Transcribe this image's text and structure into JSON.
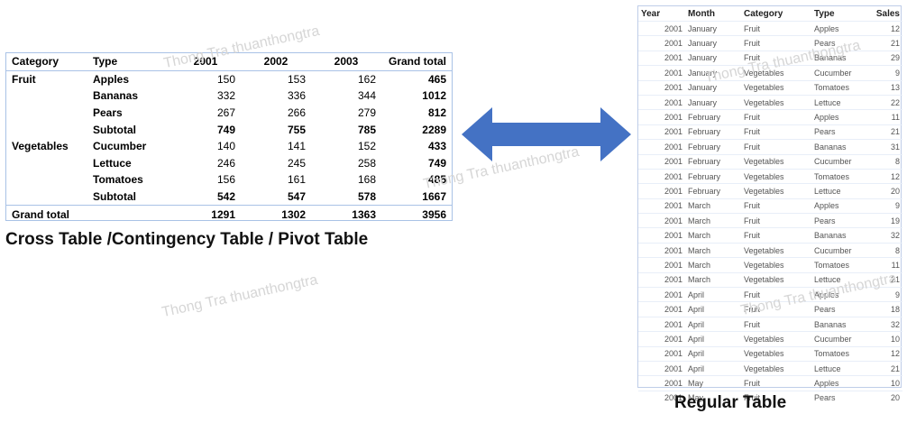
{
  "pivot": {
    "headers": [
      "Category",
      "Type",
      "2001",
      "2002",
      "2003",
      "Grand total"
    ],
    "rows": [
      {
        "category": "Fruit",
        "type": "Apples",
        "y2001": "150",
        "y2002": "153",
        "y2003": "162",
        "total": "465"
      },
      {
        "category": "",
        "type": "Bananas",
        "y2001": "332",
        "y2002": "336",
        "y2003": "344",
        "total": "1012"
      },
      {
        "category": "",
        "type": "Pears",
        "y2001": "267",
        "y2002": "266",
        "y2003": "279",
        "total": "812"
      },
      {
        "category": "",
        "type": "Subtotal",
        "y2001": "749",
        "y2002": "755",
        "y2003": "785",
        "total": "2289"
      },
      {
        "category": "Vegetables",
        "type": "Cucumber",
        "y2001": "140",
        "y2002": "141",
        "y2003": "152",
        "total": "433"
      },
      {
        "category": "",
        "type": "Lettuce",
        "y2001": "246",
        "y2002": "245",
        "y2003": "258",
        "total": "749"
      },
      {
        "category": "",
        "type": "Tomatoes",
        "y2001": "156",
        "y2002": "161",
        "y2003": "168",
        "total": "485"
      },
      {
        "category": "",
        "type": "Subtotal",
        "y2001": "542",
        "y2002": "547",
        "y2003": "578",
        "total": "1667"
      }
    ],
    "grand": {
      "label": "Grand total",
      "y2001": "1291",
      "y2002": "1302",
      "y2003": "1363",
      "total": "3956"
    }
  },
  "captions": {
    "left": "Cross Table /Contingency Table / Pivot Table",
    "right": "Regular Table"
  },
  "arrow_color": "#4472c4",
  "regular": {
    "headers": [
      "Year",
      "Month",
      "Category",
      "Type",
      "Sales"
    ],
    "rows": [
      [
        "2001",
        "January",
        "Fruit",
        "Apples",
        "12"
      ],
      [
        "2001",
        "January",
        "Fruit",
        "Pears",
        "21"
      ],
      [
        "2001",
        "January",
        "Fruit",
        "Bananas",
        "29"
      ],
      [
        "2001",
        "January",
        "Vegetables",
        "Cucumber",
        "9"
      ],
      [
        "2001",
        "January",
        "Vegetables",
        "Tomatoes",
        "13"
      ],
      [
        "2001",
        "January",
        "Vegetables",
        "Lettuce",
        "22"
      ],
      [
        "2001",
        "February",
        "Fruit",
        "Apples",
        "11"
      ],
      [
        "2001",
        "February",
        "Fruit",
        "Pears",
        "21"
      ],
      [
        "2001",
        "February",
        "Fruit",
        "Bananas",
        "31"
      ],
      [
        "2001",
        "February",
        "Vegetables",
        "Cucumber",
        "8"
      ],
      [
        "2001",
        "February",
        "Vegetables",
        "Tomatoes",
        "12"
      ],
      [
        "2001",
        "February",
        "Vegetables",
        "Lettuce",
        "20"
      ],
      [
        "2001",
        "March",
        "Fruit",
        "Apples",
        "9"
      ],
      [
        "2001",
        "March",
        "Fruit",
        "Pears",
        "19"
      ],
      [
        "2001",
        "March",
        "Fruit",
        "Bananas",
        "32"
      ],
      [
        "2001",
        "March",
        "Vegetables",
        "Cucumber",
        "8"
      ],
      [
        "2001",
        "March",
        "Vegetables",
        "Tomatoes",
        "11"
      ],
      [
        "2001",
        "March",
        "Vegetables",
        "Lettuce",
        "21"
      ],
      [
        "2001",
        "April",
        "Fruit",
        "Apples",
        "9"
      ],
      [
        "2001",
        "April",
        "Fruit",
        "Pears",
        "18"
      ],
      [
        "2001",
        "April",
        "Fruit",
        "Bananas",
        "32"
      ],
      [
        "2001",
        "April",
        "Vegetables",
        "Cucumber",
        "10"
      ],
      [
        "2001",
        "April",
        "Vegetables",
        "Tomatoes",
        "12"
      ],
      [
        "2001",
        "April",
        "Vegetables",
        "Lettuce",
        "21"
      ],
      [
        "2001",
        "May",
        "Fruit",
        "Apples",
        "10"
      ],
      [
        "2001",
        "May",
        "Fruit",
        "Pears",
        "20"
      ]
    ]
  },
  "watermark": "Thong Tra thuanthongtra"
}
